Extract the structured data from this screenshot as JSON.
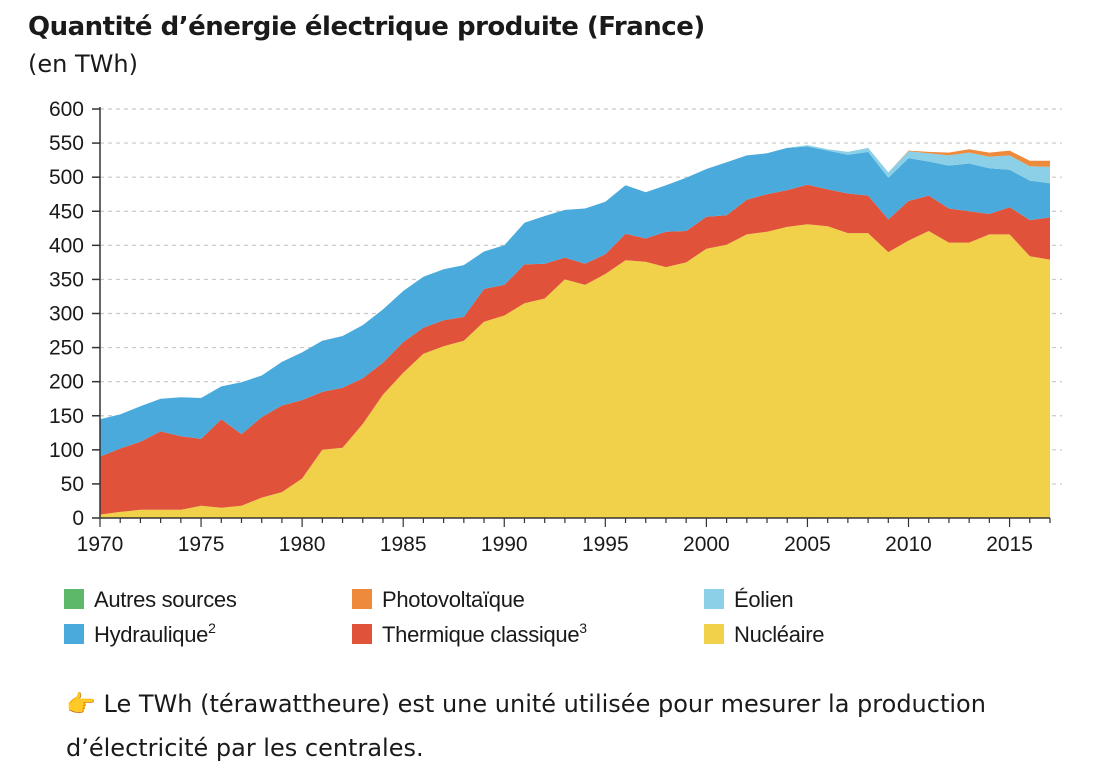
{
  "chart_data": {
    "type": "area",
    "stacked": true,
    "title": "Quantité d’énergie électrique produite (France)",
    "subtitle": "(en TWh)",
    "ylim": [
      0,
      600
    ],
    "xlim": [
      1970,
      2017
    ],
    "y_ticks": [
      0,
      50,
      100,
      150,
      200,
      250,
      300,
      350,
      400,
      450,
      500,
      550,
      600
    ],
    "x_ticks": [
      1970,
      1975,
      1980,
      1985,
      1990,
      1995,
      2000,
      2005,
      2010,
      2015
    ],
    "grid": "horizontal dashed",
    "legend_position": "bottom",
    "x": [
      1970,
      1971,
      1972,
      1973,
      1974,
      1975,
      1976,
      1977,
      1978,
      1979,
      1980,
      1981,
      1982,
      1983,
      1984,
      1985,
      1986,
      1987,
      1988,
      1989,
      1990,
      1991,
      1992,
      1993,
      1994,
      1995,
      1996,
      1997,
      1998,
      1999,
      2000,
      2001,
      2002,
      2003,
      2004,
      2005,
      2006,
      2007,
      2008,
      2009,
      2010,
      2011,
      2012,
      2013,
      2014,
      2015,
      2016,
      2017
    ],
    "series": [
      {
        "name": "Nucléaire",
        "color": "#f2d14a",
        "values": [
          5,
          9,
          12,
          12,
          12,
          18,
          15,
          18,
          30,
          38,
          58,
          100,
          103,
          138,
          181,
          213,
          241,
          252,
          260,
          288,
          297,
          315,
          322,
          350,
          342,
          358,
          378,
          376,
          368,
          375,
          395,
          401,
          416,
          420,
          427,
          431,
          428,
          418,
          418,
          390,
          407,
          421,
          404,
          404,
          416,
          416,
          384,
          379
        ]
      },
      {
        "name": "Thermique classique",
        "color": "#e0523a",
        "values": [
          85,
          93,
          100,
          115,
          108,
          98,
          130,
          105,
          118,
          127,
          115,
          85,
          88,
          67,
          47,
          45,
          38,
          38,
          35,
          48,
          45,
          57,
          51,
          32,
          31,
          29,
          39,
          34,
          52,
          46,
          47,
          43,
          51,
          55,
          54,
          58,
          54,
          58,
          55,
          48,
          58,
          52,
          50,
          46,
          30,
          40,
          53,
          62
        ]
      },
      {
        "name": "Hydraulique²",
        "color": "#4aaadc",
        "values": [
          55,
          50,
          52,
          48,
          57,
          60,
          48,
          76,
          61,
          64,
          70,
          75,
          76,
          78,
          78,
          75,
          75,
          75,
          76,
          55,
          58,
          61,
          70,
          70,
          81,
          77,
          71,
          68,
          68,
          78,
          70,
          78,
          65,
          60,
          62,
          56,
          57,
          57,
          64,
          61,
          63,
          50,
          63,
          70,
          67,
          55,
          58,
          50
        ]
      },
      {
        "name": "Éolien",
        "color": "#8cd0e8",
        "values": [
          0,
          0,
          0,
          0,
          0,
          0,
          0,
          0,
          0,
          0,
          0,
          0,
          0,
          0,
          0,
          0,
          0,
          0,
          0,
          0,
          0,
          0,
          0,
          0,
          0,
          0,
          0,
          0,
          0,
          0,
          0,
          0,
          0,
          0,
          0,
          2,
          2,
          4,
          6,
          8,
          10,
          12,
          15,
          16,
          17,
          21,
          21,
          24
        ]
      },
      {
        "name": "Photovoltaïque",
        "color": "#ee8a3c",
        "values": [
          0,
          0,
          0,
          0,
          0,
          0,
          0,
          0,
          0,
          0,
          0,
          0,
          0,
          0,
          0,
          0,
          0,
          0,
          0,
          0,
          0,
          0,
          0,
          0,
          0,
          0,
          0,
          0,
          0,
          0,
          0,
          0,
          0,
          0,
          0,
          0,
          0,
          0,
          0,
          0,
          1,
          2,
          4,
          5,
          6,
          7,
          8,
          9
        ]
      },
      {
        "name": "Autres sources",
        "color": "#5db86a",
        "values": [
          0,
          0,
          0,
          0,
          0,
          0,
          0,
          0,
          0,
          0,
          0,
          0,
          0,
          0,
          0,
          0,
          0,
          0,
          0,
          0,
          0,
          0,
          0,
          0,
          0,
          0,
          0,
          0,
          0,
          0,
          0,
          0,
          0,
          0,
          0,
          0,
          0,
          0,
          0,
          0,
          0,
          0,
          0,
          0,
          0,
          0,
          0,
          0
        ]
      }
    ],
    "legend": [
      {
        "label": "Autres sources",
        "color": "#5db86a"
      },
      {
        "label": "Photovoltaïque",
        "color": "#ee8a3c"
      },
      {
        "label": "Éolien",
        "color": "#8cd0e8"
      },
      {
        "label": "Hydraulique²",
        "color": "#4aaadc"
      },
      {
        "label": "Thermique classique³",
        "color": "#e0523a"
      },
      {
        "label": "Nucléaire",
        "color": "#f2d14a"
      }
    ]
  },
  "note": {
    "icon": "pointing-hand-icon",
    "text": "Le TWh (térawattheure) est une unité utilisée pour mesurer la production d’électricité par les centrales."
  }
}
